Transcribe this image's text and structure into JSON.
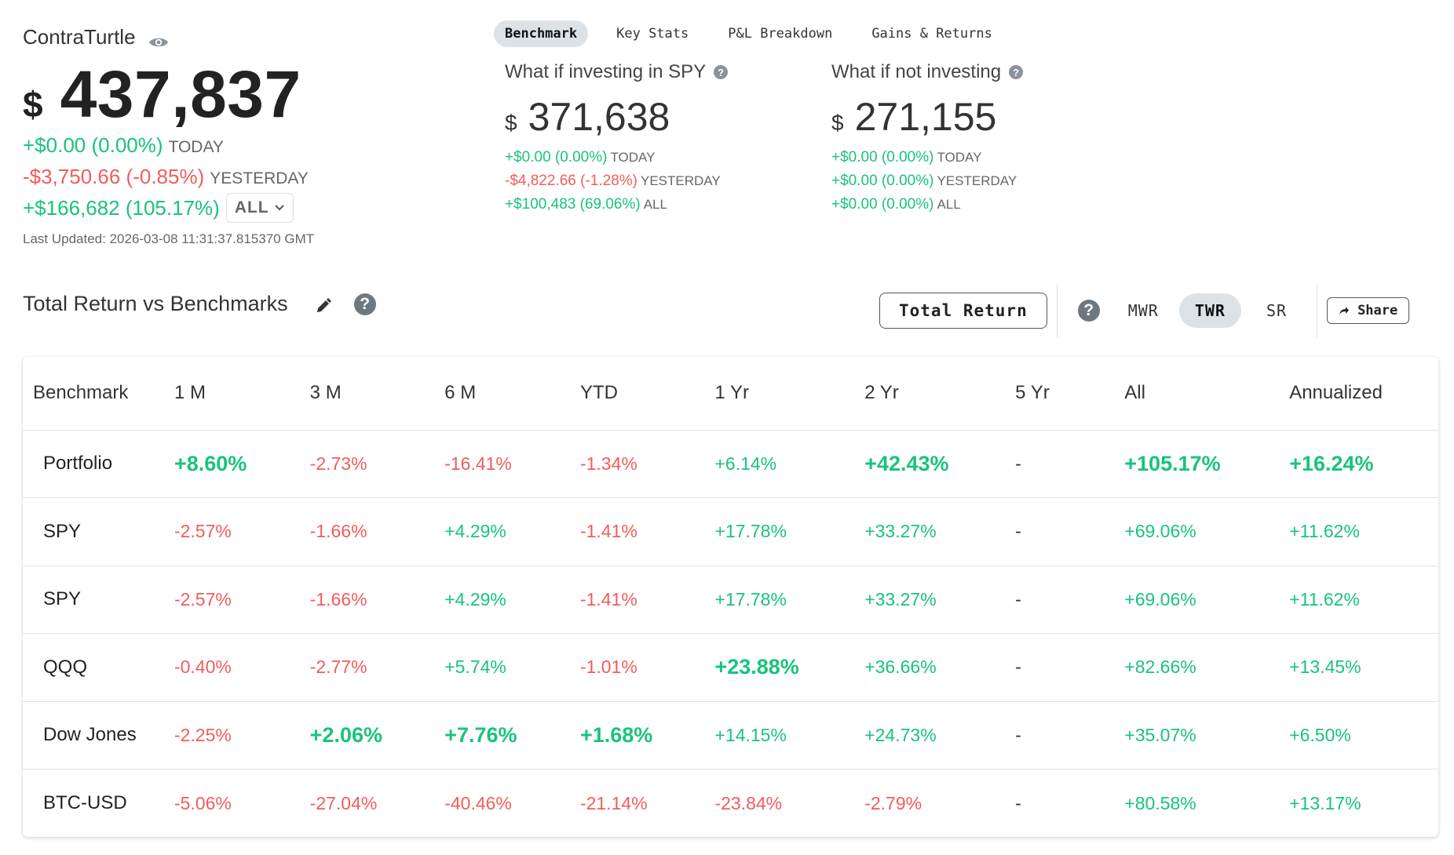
{
  "account": {
    "name": "ContraTurtle",
    "currency_symbol": "$",
    "value": "437,837",
    "today_change": "+$0.00 (0.00%)",
    "today_label": "TODAY",
    "yesterday_change": "-$3,750.66 (-0.85%)",
    "yesterday_label": "YESTERDAY",
    "range_change": "+$166,682 (105.17%)",
    "range_selected": "ALL",
    "last_updated": "Last Updated: 2026-03-08 11:31:37.815370 GMT"
  },
  "tabs": [
    "Benchmark",
    "Key Stats",
    "P&L Breakdown",
    "Gains & Returns"
  ],
  "whatif_spy": {
    "title": "What if investing in SPY",
    "currency_symbol": "$",
    "value": "371,638",
    "today": "+$0.00 (0.00%)",
    "today_label": "TODAY",
    "yesterday": "-$4,822.66 (-1.28%)",
    "yesterday_label": "YESTERDAY",
    "all": "+$100,483 (69.06%)",
    "all_label": "ALL"
  },
  "whatif_none": {
    "title": "What if not investing",
    "currency_symbol": "$",
    "value": "271,155",
    "today": "+$0.00 (0.00%)",
    "today_label": "TODAY",
    "yesterday": "+$0.00 (0.00%)",
    "yesterday_label": "YESTERDAY",
    "all": "+$0.00 (0.00%)",
    "all_label": "ALL"
  },
  "section": {
    "title": "Total Return vs Benchmarks",
    "return_button": "Total Return",
    "modes": [
      "MWR",
      "TWR",
      "SR"
    ],
    "active_mode": "TWR",
    "share_label": "Share"
  },
  "table": {
    "headers": [
      "Benchmark",
      "1 M",
      "3 M",
      "6 M",
      "YTD",
      "1 Yr",
      "2 Yr",
      "5 Yr",
      "All",
      "Annualized"
    ],
    "rows": [
      [
        "Portfolio",
        "+8.60%",
        "-2.73%",
        "-16.41%",
        "-1.34%",
        "+6.14%",
        "+42.43%",
        "-",
        "+105.17%",
        "+16.24%"
      ],
      [
        "SPY",
        "-2.57%",
        "-1.66%",
        "+4.29%",
        "-1.41%",
        "+17.78%",
        "+33.27%",
        "-",
        "+69.06%",
        "+11.62%"
      ],
      [
        "SPY",
        "-2.57%",
        "-1.66%",
        "+4.29%",
        "-1.41%",
        "+17.78%",
        "+33.27%",
        "-",
        "+69.06%",
        "+11.62%"
      ],
      [
        "QQQ",
        "-0.40%",
        "-2.77%",
        "+5.74%",
        "-1.01%",
        "+23.88%",
        "+36.66%",
        "-",
        "+82.66%",
        "+13.45%"
      ],
      [
        "Dow Jones",
        "-2.25%",
        "+2.06%",
        "+7.76%",
        "+1.68%",
        "+14.15%",
        "+24.73%",
        "-",
        "+35.07%",
        "+6.50%"
      ],
      [
        "BTC-USD",
        "-5.06%",
        "-27.04%",
        "-40.46%",
        "-21.14%",
        "-23.84%",
        "-2.79%",
        "-",
        "+80.58%",
        "+13.17%"
      ]
    ]
  },
  "colors": {
    "positive": "#19c37d",
    "negative": "#f25c5c",
    "active_bg": "#dde2e6"
  }
}
